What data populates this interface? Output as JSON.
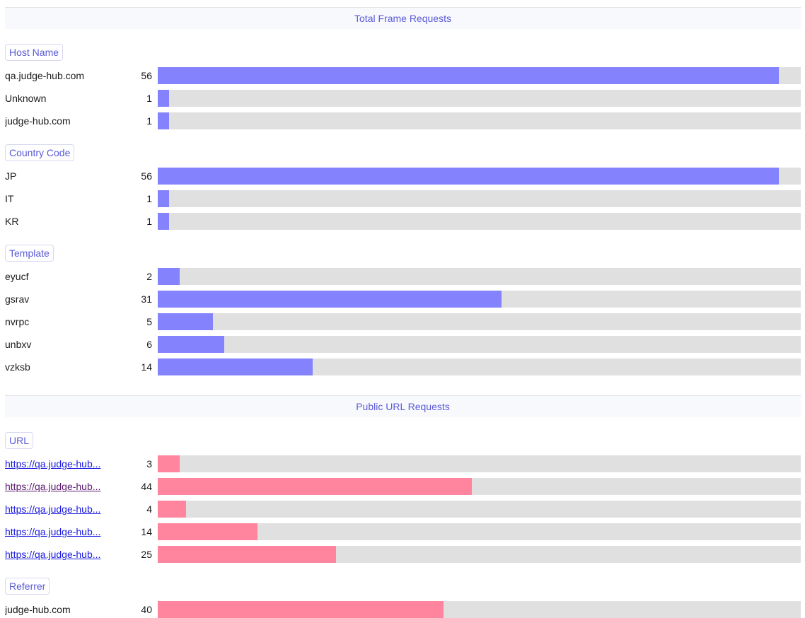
{
  "colors": {
    "frame_bar": "#8582fd",
    "public_bar": "#ff859f",
    "track": "#e0e0e0",
    "accent": "#5a5ad8"
  },
  "frame_section": {
    "title": "Total Frame Requests",
    "host_name": {
      "label": "Host Name",
      "rows": [
        {
          "name": "qa.judge-hub.com",
          "count": "56",
          "fraction": 0.966
        },
        {
          "name": "Unknown",
          "count": "1",
          "fraction": 0.0172
        },
        {
          "name": "judge-hub.com",
          "count": "1",
          "fraction": 0.0172
        }
      ]
    },
    "country_code": {
      "label": "Country Code",
      "rows": [
        {
          "name": "JP",
          "count": "56",
          "fraction": 0.966
        },
        {
          "name": "IT",
          "count": "1",
          "fraction": 0.0172
        },
        {
          "name": "KR",
          "count": "1",
          "fraction": 0.0172
        }
      ]
    },
    "template": {
      "label": "Template",
      "rows": [
        {
          "name": "eyucf",
          "count": "2",
          "fraction": 0.0345
        },
        {
          "name": "gsrav",
          "count": "31",
          "fraction": 0.5345
        },
        {
          "name": "nvrpc",
          "count": "5",
          "fraction": 0.0862
        },
        {
          "name": "unbxv",
          "count": "6",
          "fraction": 0.1034
        },
        {
          "name": "vzksb",
          "count": "14",
          "fraction": 0.2414
        }
      ]
    }
  },
  "public_section": {
    "title": "Public URL Requests",
    "url": {
      "label": "URL",
      "rows": [
        {
          "name": "https://qa.judge-hub...",
          "count": "3",
          "fraction": 0.0341,
          "visited": false
        },
        {
          "name": "https://qa.judge-hub...",
          "count": "44",
          "fraction": 0.4886,
          "visited": true
        },
        {
          "name": "https://qa.judge-hub...",
          "count": "4",
          "fraction": 0.0443,
          "visited": false
        },
        {
          "name": "https://qa.judge-hub...",
          "count": "14",
          "fraction": 0.1552,
          "visited": false
        },
        {
          "name": "https://qa.judge-hub...",
          "count": "25",
          "fraction": 0.2772,
          "visited": false
        }
      ]
    },
    "referrer": {
      "label": "Referrer",
      "rows": [
        {
          "name": "judge-hub.com",
          "count": "40",
          "fraction": 0.4444
        }
      ]
    }
  }
}
